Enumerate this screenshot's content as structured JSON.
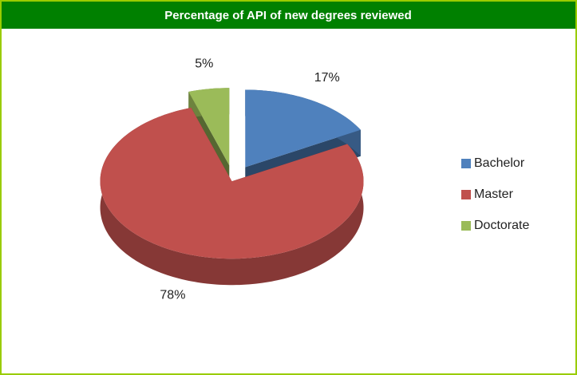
{
  "chart_data": {
    "type": "pie",
    "title": "Percentage of API of new degrees reviewed",
    "categories": [
      "Bachelor",
      "Master",
      "Doctorate"
    ],
    "values": [
      17,
      78,
      5
    ],
    "value_labels": [
      "17%",
      "78%",
      "5%"
    ],
    "colors": [
      "#4f81bd",
      "#c0504d",
      "#9bbb59"
    ],
    "legend": "right",
    "exploded": true,
    "three_d": true
  }
}
